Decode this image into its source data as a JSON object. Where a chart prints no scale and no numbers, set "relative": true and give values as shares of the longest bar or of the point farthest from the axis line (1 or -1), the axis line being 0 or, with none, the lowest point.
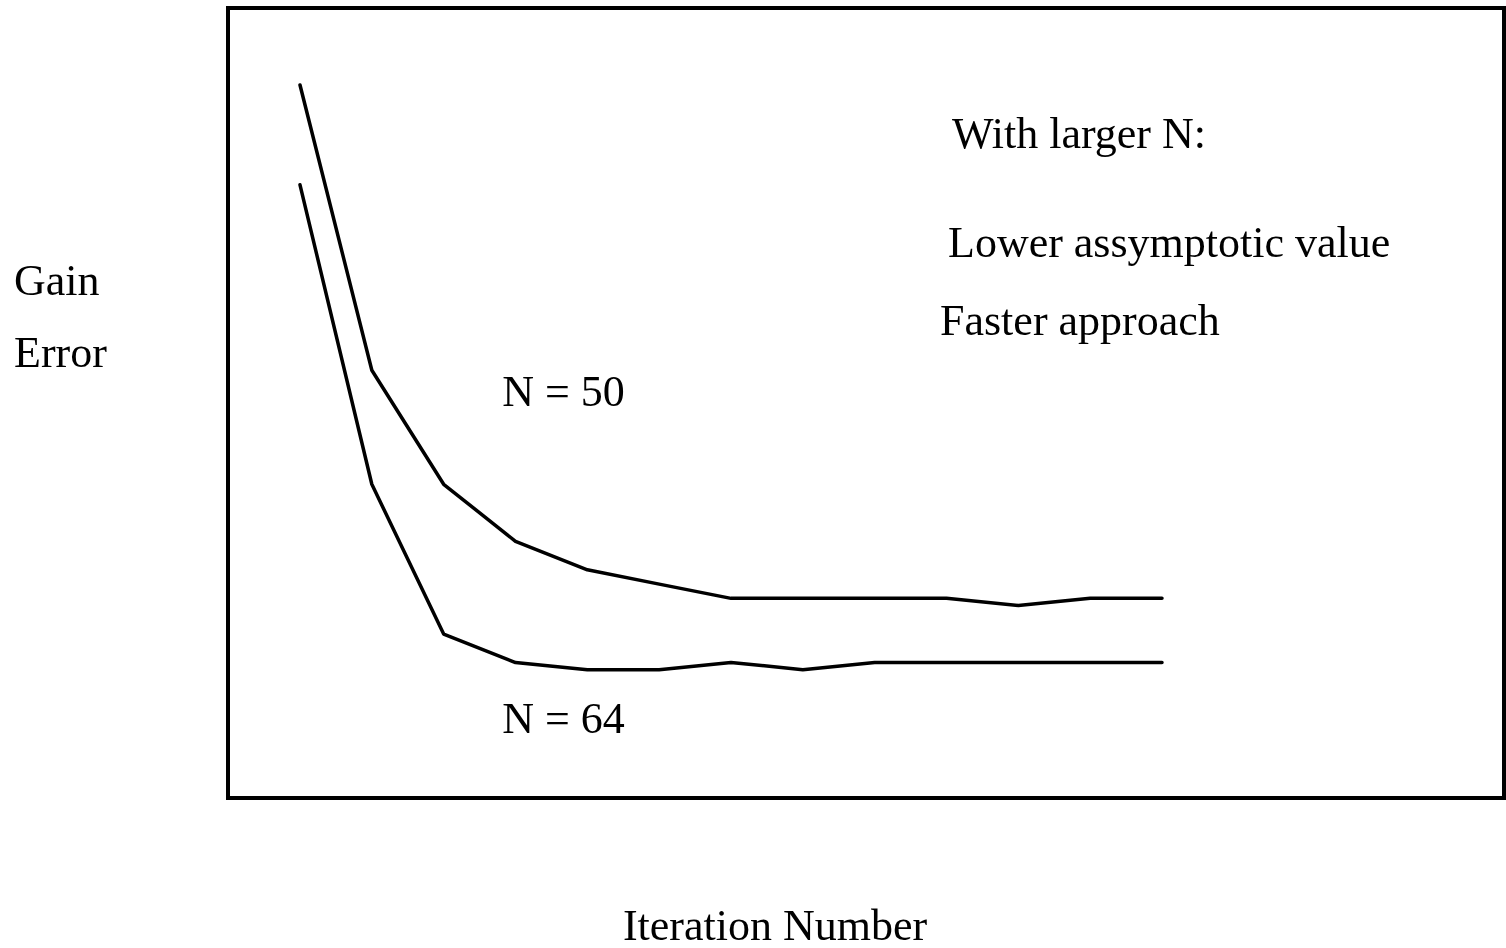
{
  "chart_data": {
    "type": "line",
    "relative": true,
    "xlabel": "Iteration Number",
    "ylabel": "Gain Error",
    "categories": [
      null,
      null,
      null,
      null,
      null,
      null,
      null,
      null,
      null,
      null,
      null,
      null,
      null
    ],
    "series": [
      {
        "name": "N = 50",
        "color": "#000000",
        "values": [
          1,
          0.6,
          0.44,
          0.36,
          0.32,
          0.3,
          0.28,
          0.28,
          0.28,
          0.28,
          0.27,
          0.28,
          0.28
        ]
      },
      {
        "name": "N = 64",
        "color": "#000000",
        "values": [
          0.86,
          0.44,
          0.23,
          0.19,
          0.18,
          0.18,
          0.19,
          0.18,
          0.19,
          0.19,
          0.19,
          0.19,
          0.19
        ]
      }
    ],
    "annotations": [
      "With larger N:",
      "Lower assymptotic value",
      "Faster approach"
    ]
  }
}
